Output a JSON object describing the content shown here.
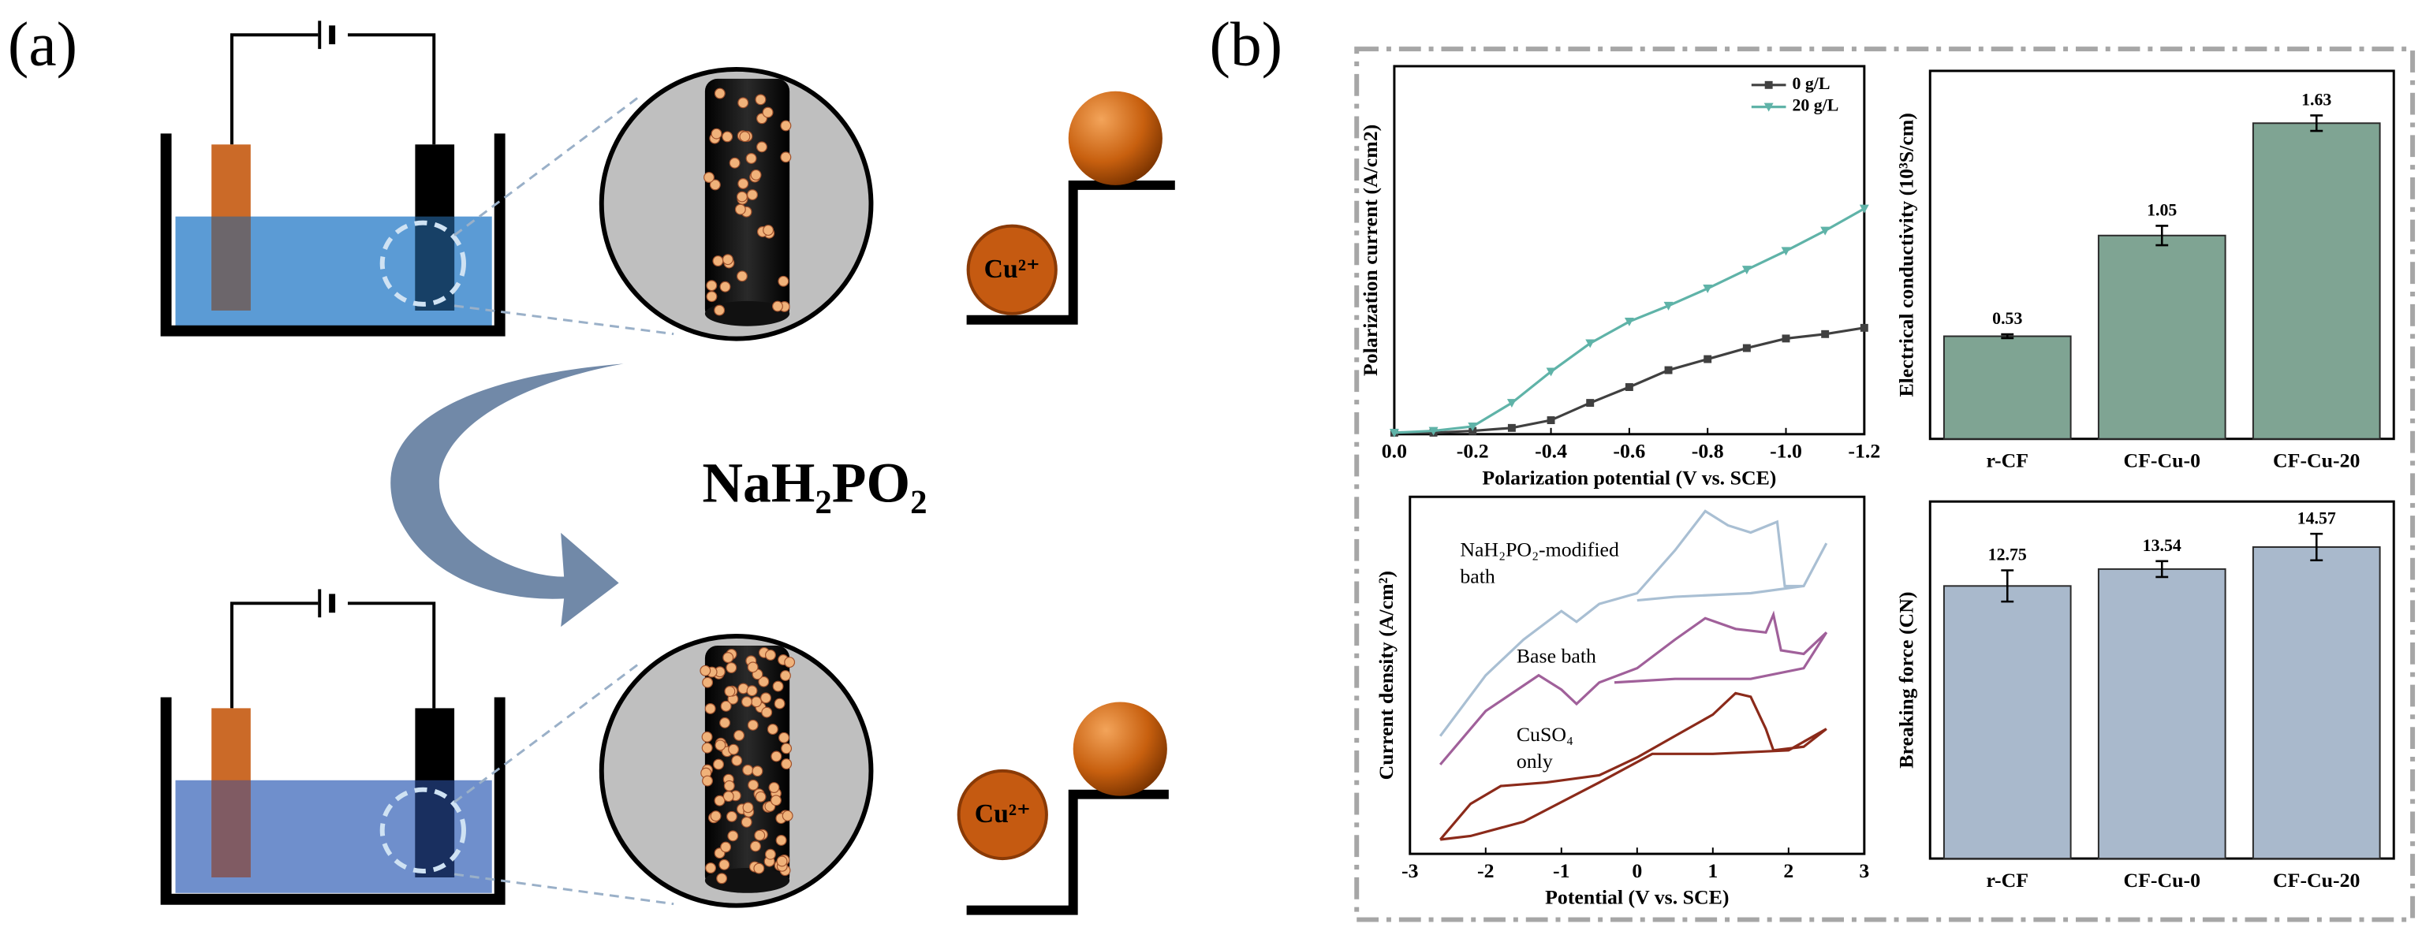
{
  "panel_labels": [
    "(a)",
    "(b)"
  ],
  "diagram": {
    "reagent": "NaH₂PO₂",
    "ion_top": "Cu²⁺",
    "ion_bottom": "Cu²⁺"
  },
  "chart_data": [
    {
      "type": "line",
      "x_label": "Polarization potential (V vs. SCE)",
      "y_label": "Polarization current (A/cm2)",
      "x": [
        0,
        -0.1,
        -0.2,
        -0.3,
        -0.4,
        -0.5,
        -0.6,
        -0.7,
        -0.8,
        -0.9,
        -1.0,
        -1.1,
        -1.2
      ],
      "series": [
        {
          "name": "0 g/L",
          "color": "#404040",
          "marker": "square",
          "values": [
            0.4,
            0.4,
            0.9,
            1.7,
            3.8,
            8.5,
            12.8,
            17.4,
            20.4,
            23.4,
            26,
            27.2,
            28.9
          ]
        },
        {
          "name": "20 g/L",
          "color": "#5fb3a8",
          "marker": "triangle",
          "values": [
            0.4,
            0.9,
            2.1,
            8.5,
            17,
            24.7,
            30.6,
            34.9,
            39.6,
            44.7,
            49.8,
            55.3,
            61.3
          ]
        }
      ],
      "xlim": [
        0,
        -1.2
      ],
      "ylim": [
        0,
        100
      ],
      "xticks": [
        {
          "value": 0,
          "label": "0.0"
        },
        -0.2,
        -0.4,
        -0.6,
        -0.8,
        {
          "value": -1.0,
          "label": "-1.0"
        },
        -1.2
      ],
      "legend": "upper right"
    },
    {
      "type": "bar",
      "y_label": "Electrical conductivity (10³S/cm)",
      "categories": [
        "r-CF",
        "CF-Cu-0",
        "CF-Cu-20"
      ],
      "values": [
        0.53,
        1.05,
        1.63
      ],
      "errors": [
        0.01,
        0.05,
        0.04
      ],
      "color": "#7fa493",
      "ylim": [
        0,
        1.9
      ]
    },
    {
      "type": "line",
      "x_label": "Potential (V vs. SCE)",
      "y_label": "Current density (A/cm²)",
      "series": [
        {
          "name": "NaH₂PO₂-modified bath",
          "color": "#a9bfd3",
          "x": [
            -2.6,
            -2,
            -1.5,
            -1,
            -0.8,
            -0.5,
            0,
            0.5,
            0.9,
            1.2,
            1.5,
            1.85,
            1.95,
            2.2,
            2.5,
            2.2,
            1.5,
            0.5,
            0
          ],
          "values": [
            33,
            50,
            60,
            68,
            65,
            70,
            73,
            85,
            96,
            92,
            90,
            93,
            75,
            75,
            87,
            75,
            73,
            72,
            71
          ]
        },
        {
          "name": "Base bath",
          "color": "#a0609a",
          "x": [
            -2.6,
            -2,
            -1.3,
            -1,
            -0.8,
            -0.5,
            0,
            0.5,
            0.9,
            1.3,
            1.7,
            1.8,
            1.9,
            2.2,
            2.5,
            2.2,
            1.5,
            0.5,
            -0.3
          ],
          "values": [
            25,
            40,
            50,
            46,
            42,
            48,
            52,
            60,
            66,
            63,
            62,
            67,
            57,
            56,
            62,
            52,
            49,
            49,
            48
          ]
        },
        {
          "name": "CuSO₄ only",
          "color": "#8b2a1a",
          "x": [
            -2.6,
            -2.2,
            -1.8,
            -1.2,
            -0.5,
            0,
            0.5,
            1,
            1.3,
            1.5,
            1.7,
            1.8,
            2.2,
            2.5,
            2,
            1,
            0.2,
            -0.5,
            -1.5,
            -2.2,
            -2.6
          ],
          "values": [
            4,
            14,
            19,
            20,
            22,
            27,
            33,
            39,
            45,
            44,
            35,
            29,
            30,
            35,
            29,
            28,
            28,
            20,
            9,
            5,
            4
          ]
        }
      ],
      "annotations": [
        {
          "lines": [
            "NaH₂PO₂-modified",
            "bath"
          ]
        },
        {
          "lines": [
            "Base bath"
          ]
        },
        {
          "lines": [
            "CuSO₄",
            "only"
          ]
        }
      ],
      "xlim": [
        -3,
        3
      ],
      "ylim": [
        0,
        100
      ],
      "xticks": [
        -3,
        -2,
        -1,
        0,
        1,
        2,
        3
      ]
    },
    {
      "type": "bar",
      "y_label": "Breaking force (CN)",
      "categories": [
        "r-CF",
        "CF-Cu-0",
        "CF-Cu-20"
      ],
      "values": [
        12.75,
        13.54,
        14.57
      ],
      "errors": [
        0.73,
        0.37,
        0.62
      ],
      "color": "#a9b9cc",
      "ylim": [
        0,
        16.7
      ]
    }
  ]
}
